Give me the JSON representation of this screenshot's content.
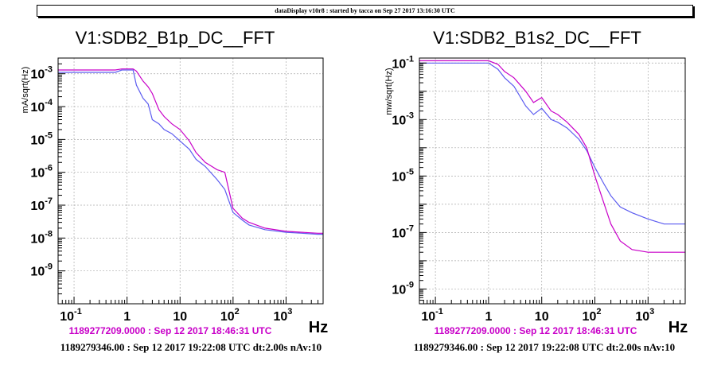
{
  "header": {
    "banner": "dataDisplay v10r8 : started by tacca on Sep 27 2017 13:16:30 UTC"
  },
  "chart_data": [
    {
      "type": "line",
      "title": "V1:SDB2_B1p_DC__FFT",
      "ylabel": "mA/sqrt(Hz)",
      "xlabel": "Hz",
      "xscale": "log",
      "yscale": "log",
      "xlim": [
        0.05,
        5000
      ],
      "ylim": [
        1e-10,
        0.003
      ],
      "x_ticks": [
        {
          "value": 0.1,
          "label": "10",
          "exp": "-1"
        },
        {
          "value": 1,
          "label": "1",
          "exp": ""
        },
        {
          "value": 10,
          "label": "10",
          "exp": ""
        },
        {
          "value": 100,
          "label": "10",
          "exp": "2"
        },
        {
          "value": 1000,
          "label": "10",
          "exp": "3"
        }
      ],
      "y_ticks": [
        {
          "value": 1e-09,
          "label": "10",
          "exp": "-9"
        },
        {
          "value": 1e-08,
          "label": "10",
          "exp": "-8"
        },
        {
          "value": 1e-07,
          "label": "10",
          "exp": "-7"
        },
        {
          "value": 1e-06,
          "label": "10",
          "exp": "-6"
        },
        {
          "value": 1e-05,
          "label": "10",
          "exp": "-5"
        },
        {
          "value": 0.0001,
          "label": "10",
          "exp": "-4"
        },
        {
          "value": 0.001,
          "label": "10",
          "exp": "-3"
        }
      ],
      "grid": true,
      "series": [
        {
          "color": "#5c5cf0",
          "points": [
            [
              0.05,
              0.0011
            ],
            [
              0.1,
              0.0011
            ],
            [
              0.3,
              0.0011
            ],
            [
              0.6,
              0.0011
            ],
            [
              0.8,
              0.0013
            ],
            [
              1.0,
              0.0013
            ],
            [
              1.3,
              0.0013
            ],
            [
              1.5,
              0.00045
            ],
            [
              2.0,
              0.00018
            ],
            [
              2.5,
              0.00012
            ],
            [
              3.0,
              4e-05
            ],
            [
              4.0,
              3e-05
            ],
            [
              5.0,
              2e-05
            ],
            [
              7.0,
              1.5e-05
            ],
            [
              10,
              9e-06
            ],
            [
              15,
              5e-06
            ],
            [
              20,
              2.5e-06
            ],
            [
              30,
              1.5e-06
            ],
            [
              40,
              9e-07
            ],
            [
              50,
              6e-07
            ],
            [
              70,
              3e-07
            ],
            [
              100,
              6e-08
            ],
            [
              150,
              3.5e-08
            ],
            [
              200,
              2.5e-08
            ],
            [
              400,
              1.8e-08
            ],
            [
              1000,
              1.5e-08
            ],
            [
              2000,
              1.4e-08
            ],
            [
              4000,
              1.3e-08
            ],
            [
              5000,
              1.3e-08
            ]
          ]
        },
        {
          "color": "#c800c8",
          "points": [
            [
              0.05,
              0.0013
            ],
            [
              0.1,
              0.0013
            ],
            [
              0.3,
              0.0013
            ],
            [
              0.6,
              0.0013
            ],
            [
              0.8,
              0.0014
            ],
            [
              1.0,
              0.0014
            ],
            [
              1.3,
              0.0014
            ],
            [
              1.5,
              0.0012
            ],
            [
              2.0,
              0.0006
            ],
            [
              2.5,
              0.0004
            ],
            [
              3.0,
              0.00025
            ],
            [
              4.0,
              8e-05
            ],
            [
              5.0,
              5e-05
            ],
            [
              7.0,
              3e-05
            ],
            [
              10,
              2e-05
            ],
            [
              15,
              9e-06
            ],
            [
              20,
              4e-06
            ],
            [
              30,
              2e-06
            ],
            [
              40,
              1.5e-06
            ],
            [
              50,
              1.2e-06
            ],
            [
              70,
              1e-06
            ],
            [
              100,
              8e-08
            ],
            [
              150,
              4e-08
            ],
            [
              200,
              3e-08
            ],
            [
              400,
              2e-08
            ],
            [
              1000,
              1.6e-08
            ],
            [
              2000,
              1.5e-08
            ],
            [
              4000,
              1.4e-08
            ],
            [
              5000,
              1.4e-08
            ]
          ]
        }
      ],
      "timestamp_top": "1189277209.0000 : Sep 12 2017 18:46:31 UTC",
      "timestamp_bottom": "1189279346.00 : Sep 12 2017 19:22:08 UTC dt:2.00s nAv:10"
    },
    {
      "type": "line",
      "title": "V1:SDB2_B1s2_DC__FFT",
      "ylabel": "mw/sqrt(Hz)",
      "xlabel": "Hz",
      "xscale": "log",
      "yscale": "log",
      "xlim": [
        0.05,
        5000
      ],
      "ylim": [
        3e-10,
        0.15
      ],
      "x_ticks": [
        {
          "value": 0.1,
          "label": "10",
          "exp": "-1"
        },
        {
          "value": 1,
          "label": "1",
          "exp": ""
        },
        {
          "value": 10,
          "label": "10",
          "exp": ""
        },
        {
          "value": 100,
          "label": "10",
          "exp": "2"
        },
        {
          "value": 1000,
          "label": "10",
          "exp": "3"
        }
      ],
      "y_ticks": [
        {
          "value": 1e-09,
          "label": "10",
          "exp": "-9"
        },
        {
          "value": 1e-07,
          "label": "10",
          "exp": "-7"
        },
        {
          "value": 1e-05,
          "label": "10",
          "exp": "-5"
        },
        {
          "value": 0.001,
          "label": "10",
          "exp": "-3"
        },
        {
          "value": 0.1,
          "label": "10",
          "exp": "-1"
        }
      ],
      "grid": true,
      "series": [
        {
          "color": "#5c5cf0",
          "points": [
            [
              0.05,
              0.1
            ],
            [
              0.1,
              0.1
            ],
            [
              0.3,
              0.1
            ],
            [
              0.8,
              0.1
            ],
            [
              1.0,
              0.1
            ],
            [
              1.5,
              0.06
            ],
            [
              2.0,
              0.03
            ],
            [
              3.0,
              0.015
            ],
            [
              5.0,
              0.003
            ],
            [
              7.0,
              0.0015
            ],
            [
              10,
              0.0025
            ],
            [
              15,
              0.001
            ],
            [
              20,
              0.0008
            ],
            [
              30,
              0.0005
            ],
            [
              50,
              0.0002
            ],
            [
              70,
              8e-05
            ],
            [
              100,
              2e-05
            ],
            [
              150,
              5e-06
            ],
            [
              200,
              2e-06
            ],
            [
              300,
              8e-07
            ],
            [
              500,
              5e-07
            ],
            [
              1000,
              3e-07
            ],
            [
              2000,
              2e-07
            ],
            [
              4000,
              2e-07
            ],
            [
              5000,
              2e-07
            ]
          ]
        },
        {
          "color": "#c800c8",
          "points": [
            [
              0.05,
              0.12
            ],
            [
              0.1,
              0.12
            ],
            [
              0.3,
              0.12
            ],
            [
              0.8,
              0.12
            ],
            [
              1.0,
              0.12
            ],
            [
              1.5,
              0.09
            ],
            [
              2.0,
              0.05
            ],
            [
              3.0,
              0.03
            ],
            [
              5.0,
              0.01
            ],
            [
              7.0,
              0.004
            ],
            [
              10,
              0.006
            ],
            [
              15,
              0.002
            ],
            [
              20,
              0.0015
            ],
            [
              30,
              0.0008
            ],
            [
              50,
              0.0003
            ],
            [
              70,
              0.0001
            ],
            [
              100,
              1e-05
            ],
            [
              150,
              1e-06
            ],
            [
              200,
              2e-07
            ],
            [
              300,
              5e-08
            ],
            [
              500,
              2.5e-08
            ],
            [
              1000,
              2e-08
            ],
            [
              2000,
              2e-08
            ],
            [
              4000,
              2e-08
            ],
            [
              5000,
              2e-08
            ]
          ]
        }
      ],
      "timestamp_top": "1189277209.0000 : Sep 12 2017 18:46:31 UTC",
      "timestamp_bottom": "1189279346.00 : Sep 12 2017 19:22:08 UTC dt:2.00s nAv:10"
    }
  ]
}
